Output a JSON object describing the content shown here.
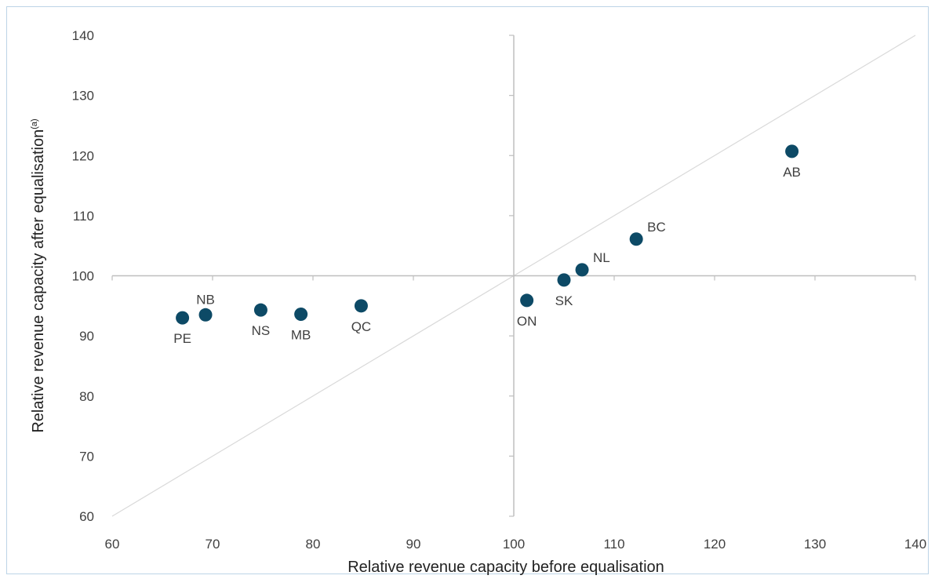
{
  "chart_data": {
    "type": "scatter",
    "xlabel": "Relative revenue capacity before equalisation",
    "ylabel": "Relative revenue capacity after equalisation",
    "ylabel_superscript": "(a)",
    "xlim": [
      60,
      140
    ],
    "ylim": [
      60,
      140
    ],
    "x_ticks": [
      60,
      70,
      80,
      90,
      100,
      110,
      120,
      130,
      140
    ],
    "y_ticks": [
      60,
      70,
      80,
      90,
      100,
      110,
      120,
      130,
      140
    ],
    "x_tick_labels": [
      "60",
      "70",
      "80",
      "90",
      "100",
      "110",
      "120",
      "130",
      "140"
    ],
    "y_tick_labels": [
      "60",
      "70",
      "80",
      "90",
      "100",
      "110",
      "120",
      "130",
      "140"
    ],
    "grid": false,
    "reference_line": {
      "from": [
        60,
        60
      ],
      "to": [
        140,
        140
      ]
    },
    "points": [
      {
        "label": "PE",
        "x": 67.0,
        "y": 93.0,
        "label_pos": "below"
      },
      {
        "label": "NB",
        "x": 69.3,
        "y": 93.5,
        "label_pos": "above"
      },
      {
        "label": "NS",
        "x": 74.8,
        "y": 94.3,
        "label_pos": "below"
      },
      {
        "label": "MB",
        "x": 78.8,
        "y": 93.6,
        "label_pos": "below"
      },
      {
        "label": "QC",
        "x": 84.8,
        "y": 95.0,
        "label_pos": "below"
      },
      {
        "label": "ON",
        "x": 101.3,
        "y": 95.9,
        "label_pos": "below"
      },
      {
        "label": "SK",
        "x": 105.0,
        "y": 99.3,
        "label_pos": "below"
      },
      {
        "label": "NL",
        "x": 106.8,
        "y": 101.0,
        "label_pos": "above-right"
      },
      {
        "label": "BC",
        "x": 112.2,
        "y": 106.1,
        "label_pos": "above-right"
      },
      {
        "label": "AB",
        "x": 127.7,
        "y": 120.7,
        "label_pos": "below"
      }
    ],
    "colors": {
      "marker": "#0d4a66",
      "axis": "#bfbfbf",
      "reference_line": "#d9d9d9"
    }
  }
}
